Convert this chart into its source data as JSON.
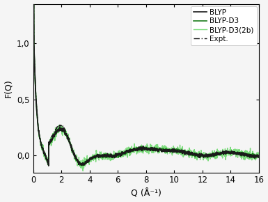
{
  "title": "",
  "xlabel": "Q (Å⁻¹)",
  "ylabel": "F(Q)",
  "xlim": [
    0,
    16
  ],
  "ylim": [
    -0.15,
    1.35
  ],
  "yticks": [
    0.0,
    0.5,
    1.0
  ],
  "ytick_labels": [
    "0,0",
    "0,5",
    "1,0"
  ],
  "xticks": [
    0,
    2,
    4,
    6,
    8,
    10,
    12,
    14,
    16
  ],
  "legend_labels": [
    "BLYP",
    "BLYP-D3",
    "BLYP-D3(2b)",
    "Expt."
  ],
  "colors": {
    "BLYP": "#1a1a1a",
    "BLYP_D3": "#1a7a1a",
    "BLYP_D3_2b": "#7ddc7d",
    "Expt": "#1a1a1a"
  },
  "line_widths": {
    "BLYP": 1.2,
    "BLYP_D3": 1.2,
    "BLYP_D3_2b": 1.0,
    "Expt": 1.0
  },
  "background_color": "#f5f5f5"
}
